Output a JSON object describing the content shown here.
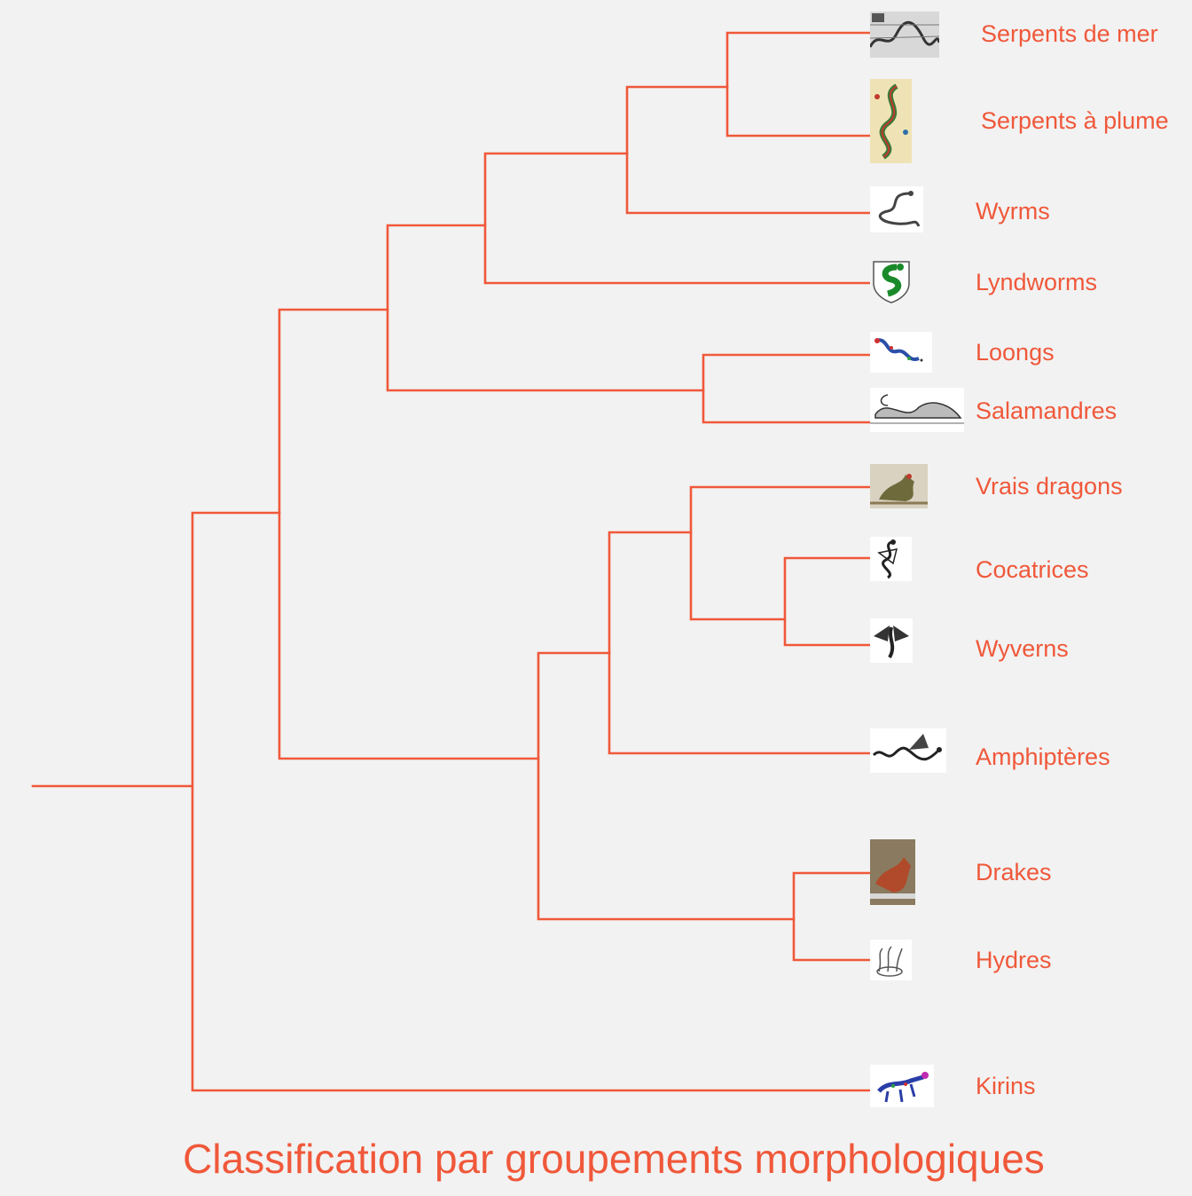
{
  "title": "Classification par groupements morphologiques",
  "colors": {
    "accent": "#f0583a",
    "background": "#f2f2f2"
  },
  "tree": {
    "leaves": [
      {
        "id": "serpents-de-mer",
        "label": "Serpents de mer",
        "image": "sea-serpent-engraving"
      },
      {
        "id": "serpents-a-plume",
        "label": "Serpents à plume",
        "image": "feathered-serpent-codex"
      },
      {
        "id": "wyrms",
        "label": "Wyrms",
        "image": "wyrm-sketch"
      },
      {
        "id": "lyndworms",
        "label": "Lyndworms",
        "image": "green-lindworm-shield"
      },
      {
        "id": "loongs",
        "label": "Loongs",
        "image": "colored-loong"
      },
      {
        "id": "salamandres",
        "label": "Salamandres",
        "image": "salamander-engraving"
      },
      {
        "id": "vrais-dragons",
        "label": "Vrais dragons",
        "image": "true-dragon-painting"
      },
      {
        "id": "cocatrices",
        "label": "Cocatrices",
        "image": "cockatrice-woodcut"
      },
      {
        "id": "wyverns",
        "label": "Wyverns",
        "image": "wyvern-woodcut"
      },
      {
        "id": "amphipteres",
        "label": "Amphiptères",
        "image": "amphiptere-woodcut"
      },
      {
        "id": "drakes",
        "label": "Drakes",
        "image": "drake-painting"
      },
      {
        "id": "hydres",
        "label": "Hydres",
        "image": "hydra-sketch"
      },
      {
        "id": "kirins",
        "label": "Kirins",
        "image": "colored-kirin"
      }
    ]
  }
}
